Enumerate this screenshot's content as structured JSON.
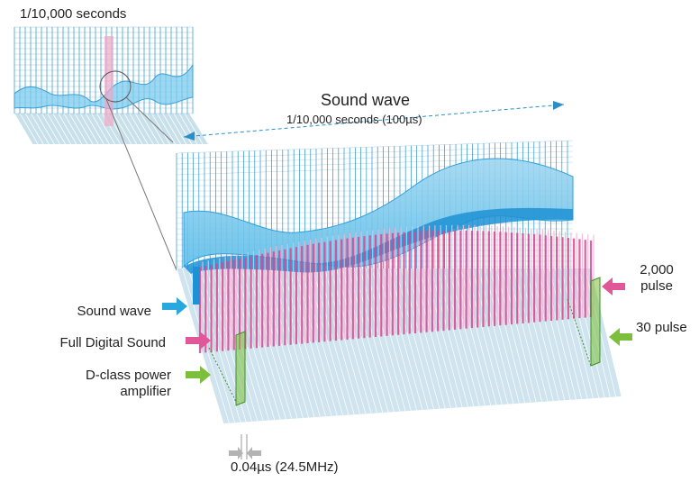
{
  "inset": {
    "title": "1/10,000 seconds"
  },
  "main": {
    "title": "Sound wave",
    "range_label": "1/10,000 seconds (100µs)"
  },
  "legend": {
    "sound_wave": "Sound wave",
    "full_digital": "Full Digital Sound",
    "dclass": "D-class power amplifier"
  },
  "pulses": {
    "high": "2,000 pulse",
    "low": "30 pulse"
  },
  "frequency_label": "0.04µs (24.5MHz)",
  "colors": {
    "sound_wave": "#29a8e0",
    "full_digital": "#e0579a",
    "dclass": "#7cbf3a",
    "grid": "#2a8fc8",
    "floor": "#cfe4ee",
    "gray_arrow": "#b3b3b3"
  }
}
